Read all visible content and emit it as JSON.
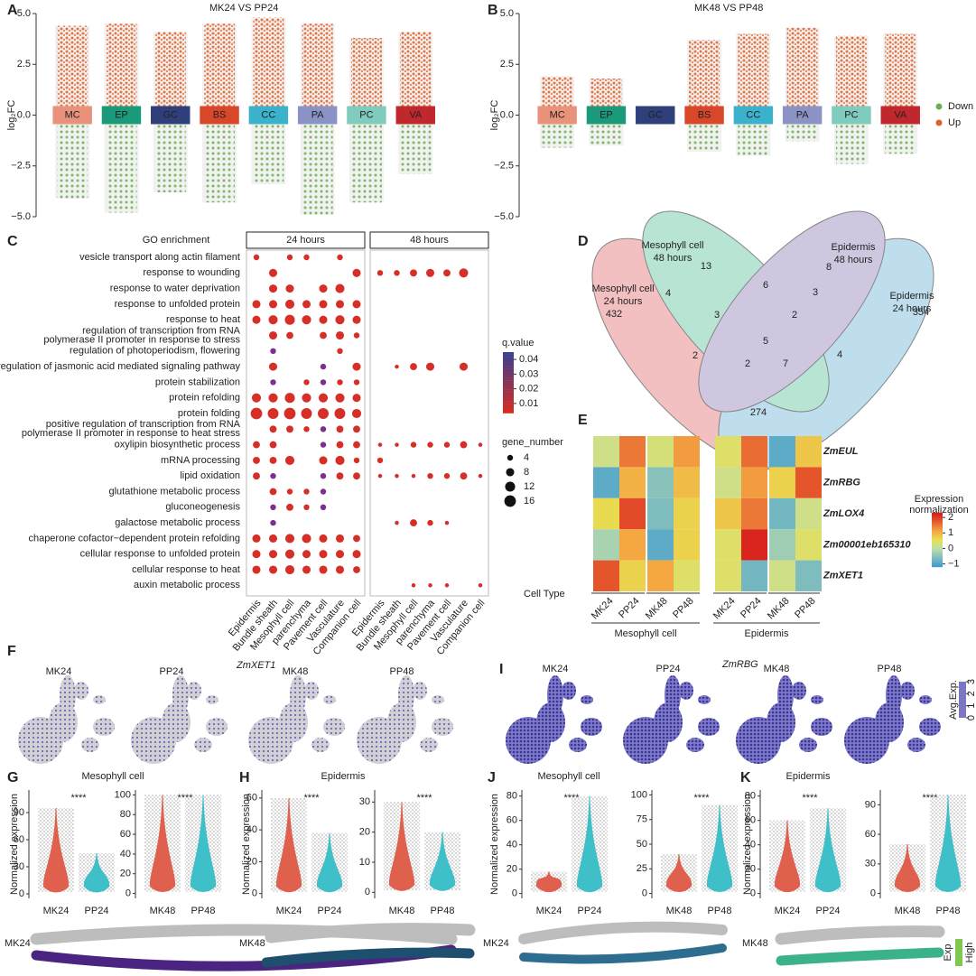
{
  "panel_a": {
    "label": "A",
    "title": "MK24 VS PP24",
    "ylabel": "log₂FC",
    "ylim": [
      -5,
      5
    ],
    "yticks": [
      {
        "value": 5,
        "label": "5.0"
      },
      2.5,
      {
        "value": 0,
        "label": "0.0"
      },
      {
        "value": -2.5,
        "label": "−2.5"
      },
      {
        "value": -5,
        "label": "−5.0"
      }
    ],
    "categories": [
      "MC",
      "EP",
      "GC",
      "BS",
      "CC",
      "PA",
      "PC",
      "VA"
    ],
    "colors": [
      "#e8927c",
      "#1a9a7a",
      "#2e3f7a",
      "#d9472b",
      "#3bb2cc",
      "#8a92c6",
      "#7fcbbd",
      "#c0282d"
    ],
    "up_max": [
      4.4,
      4.5,
      4.1,
      4.5,
      4.8,
      4.5,
      3.8,
      4.1
    ],
    "down_min": [
      -4.1,
      -4.8,
      -3.8,
      -4.3,
      -3.4,
      -4.9,
      -4.3,
      -2.9
    ]
  },
  "panel_b": {
    "label": "B",
    "title": "MK48 VS PP48",
    "ylabel": "log₂FC",
    "ylim": [
      -5,
      5
    ],
    "yticks": [
      {
        "value": 5,
        "label": "5.0"
      },
      2.5,
      {
        "value": 0,
        "label": "0.0"
      },
      {
        "value": -2.5,
        "label": "−2.5"
      },
      {
        "value": -5,
        "label": "−5.0"
      }
    ],
    "categories": [
      "MC",
      "EP",
      "GC",
      "BS",
      "CC",
      "PA",
      "PC",
      "VA"
    ],
    "colors": [
      "#e8927c",
      "#1a9a7a",
      "#2e3f7a",
      "#d9472b",
      "#3bb2cc",
      "#8a92c6",
      "#7fcbbd",
      "#c0282d"
    ],
    "up_max": [
      1.9,
      1.8,
      null,
      3.7,
      4.0,
      4.3,
      3.9,
      4.0
    ],
    "down_min": [
      -1.6,
      -1.5,
      null,
      -1.8,
      -2.0,
      -1.3,
      -2.4,
      -1.9
    ],
    "legend": [
      {
        "name": "Down",
        "color": "#6ab04c"
      },
      {
        "name": "Up",
        "color": "#e0602a"
      }
    ]
  },
  "panel_c": {
    "label": "C",
    "title": "GO enrichment",
    "facets": [
      "24 hours",
      "48 hours"
    ],
    "cell_types": [
      "Epidermis",
      "Bundle sheath",
      "Mesophyll cell",
      "parenchyma",
      "Pavement cell",
      "Vasculature",
      "Companion cell"
    ],
    "x_title": "Cell Type",
    "terms": [
      {
        "term": [
          "vesicle transport along actin filament"
        ],
        "s24": [
          4,
          null,
          4,
          4,
          null,
          4,
          null
        ],
        "s48": [
          null,
          null,
          null,
          null,
          null,
          null,
          null
        ]
      },
      {
        "term": [
          "response to wounding"
        ],
        "s24": [
          null,
          8,
          null,
          null,
          null,
          null,
          8
        ],
        "s48": [
          4,
          4,
          6,
          8,
          6,
          10,
          null
        ]
      },
      {
        "term": [
          "response to water deprivation"
        ],
        "s24": [
          null,
          8,
          8,
          null,
          8,
          10,
          null
        ],
        "s48": [
          null,
          null,
          null,
          null,
          null,
          null,
          null
        ]
      },
      {
        "term": [
          "response to unfolded protein"
        ],
        "s24": [
          8,
          8,
          10,
          8,
          8,
          8,
          8
        ],
        "s48": [
          null,
          null,
          null,
          null,
          null,
          null,
          null
        ]
      },
      {
        "term": [
          "response to heat"
        ],
        "s24": [
          8,
          10,
          12,
          10,
          8,
          10,
          8
        ],
        "s48": [
          null,
          null,
          null,
          null,
          null,
          null,
          null
        ]
      },
      {
        "term": [
          "regulation of transcription from RNA",
          "polymerase II promoter in response to stress"
        ],
        "s24": [
          null,
          8,
          6,
          null,
          6,
          8,
          4
        ],
        "s48": [
          null,
          null,
          null,
          null,
          null,
          null,
          null
        ]
      },
      {
        "term": [
          "regulation of photoperiodism, flowering"
        ],
        "s24": [
          null,
          4,
          null,
          null,
          null,
          4,
          null
        ],
        "s48": [
          null,
          null,
          null,
          null,
          null,
          null,
          null
        ]
      },
      {
        "term": [
          "regulation of jasmonic acid mediated signaling pathway"
        ],
        "s24": [
          null,
          8,
          null,
          null,
          4,
          null,
          8
        ],
        "s48": [
          null,
          2,
          6,
          8,
          null,
          8,
          null
        ]
      },
      {
        "term": [
          "protein stabilization"
        ],
        "s24": [
          null,
          4,
          null,
          4,
          4,
          4,
          4
        ],
        "s48": [
          null,
          null,
          null,
          null,
          null,
          null,
          null
        ]
      },
      {
        "term": [
          "protein refolding"
        ],
        "s24": [
          10,
          10,
          12,
          10,
          10,
          10,
          8
        ],
        "s48": [
          null,
          null,
          null,
          null,
          null,
          null,
          null
        ]
      },
      {
        "term": [
          "protein folding"
        ],
        "s24": [
          16,
          14,
          16,
          14,
          14,
          14,
          10
        ],
        "s48": [
          null,
          null,
          null,
          null,
          null,
          null,
          null
        ]
      },
      {
        "term": [
          "positive regulation of transcription from RNA",
          "polymerase II promoter in response to heat stress"
        ],
        "s24": [
          null,
          6,
          6,
          4,
          4,
          6,
          6
        ],
        "s48": [
          null,
          null,
          null,
          null,
          null,
          null,
          null
        ]
      },
      {
        "term": [
          "oxylipin biosynthetic process"
        ],
        "s24": [
          6,
          6,
          null,
          null,
          4,
          6,
          6
        ],
        "s48": [
          2,
          2,
          4,
          4,
          4,
          6,
          2
        ]
      },
      {
        "term": [
          "mRNA processing"
        ],
        "s24": [
          6,
          6,
          10,
          null,
          8,
          10,
          4
        ],
        "s48": [
          4,
          null,
          null,
          null,
          null,
          null,
          null
        ]
      },
      {
        "term": [
          "lipid oxidation"
        ],
        "s24": [
          6,
          4,
          null,
          null,
          4,
          6,
          6
        ],
        "s48": [
          2,
          2,
          2,
          4,
          4,
          6,
          2
        ]
      },
      {
        "term": [
          "glutathione metabolic process"
        ],
        "s24": [
          null,
          6,
          4,
          4,
          4,
          null,
          null
        ],
        "s48": [
          null,
          null,
          null,
          null,
          null,
          null,
          null
        ]
      },
      {
        "term": [
          "gluconeogenesis"
        ],
        "s24": [
          null,
          4,
          6,
          4,
          4,
          null,
          null
        ],
        "s48": [
          null,
          null,
          null,
          null,
          null,
          null,
          null
        ]
      },
      {
        "term": [
          "galactose metabolic process"
        ],
        "s24": [
          null,
          4,
          null,
          null,
          null,
          null,
          null
        ],
        "s48": [
          null,
          2,
          6,
          4,
          2,
          null,
          null
        ]
      },
      {
        "term": [
          "chaperone cofactor−dependent protein refolding"
        ],
        "s24": [
          8,
          8,
          10,
          10,
          8,
          8,
          6
        ],
        "s48": [
          null,
          null,
          null,
          null,
          null,
          null,
          null
        ]
      },
      {
        "term": [
          "cellular response to unfolded protein"
        ],
        "s24": [
          8,
          8,
          10,
          8,
          8,
          8,
          8
        ],
        "s48": [
          null,
          null,
          null,
          null,
          null,
          null,
          null
        ]
      },
      {
        "term": [
          "cellular response to heat"
        ],
        "s24": [
          8,
          8,
          10,
          8,
          8,
          8,
          6
        ],
        "s48": [
          null,
          null,
          null,
          null,
          null,
          null,
          null
        ]
      },
      {
        "term": [
          "auxin metabolic process"
        ],
        "s24": [
          null,
          null,
          null,
          null,
          null,
          null,
          null
        ],
        "s48": [
          null,
          null,
          2,
          2,
          2,
          null,
          2
        ]
      }
    ],
    "q_title": "q.value",
    "q_lim": [
      0.005,
      0.045
    ],
    "q_ticks": [
      0.04,
      0.03,
      0.02,
      0.01
    ],
    "size_title": "gene_number",
    "size_ticks": [
      4,
      8,
      12,
      16
    ]
  },
  "panel_d": {
    "label": "D",
    "sets": [
      [
        "Mesophyll cell",
        "48 hours"
      ],
      [
        "Epidermis",
        "48 hours"
      ],
      [
        "Mesophyll cell",
        "24 hours"
      ],
      [
        "Epidermis",
        "24 hours"
      ]
    ],
    "counts": [
      13,
      8,
      432,
      354,
      4,
      6,
      3,
      3,
      2,
      5,
      2,
      2,
      7,
      4,
      274
    ]
  },
  "panel_e": {
    "label": "E",
    "genes": [
      "ZmEUL",
      "ZmRBG",
      "ZmLOX4",
      "Zm00001eb165310",
      "ZmXET1"
    ],
    "samples": [
      "MK24",
      "PP24",
      "MK48",
      "PP48",
      "MK24",
      "PP24",
      "MK48",
      "PP48"
    ],
    "groups": [
      "Mesophyll cell",
      "Epidermis"
    ],
    "values": [
      [
        0.2,
        1.5,
        0.3,
        1.2,
        0.4,
        1.6,
        -0.9,
        0.8
      ],
      [
        -0.9,
        1.0,
        -0.5,
        0.9,
        0.2,
        1.2,
        0.7,
        1.8
      ],
      [
        0.6,
        1.9,
        -0.6,
        0.7,
        0.8,
        1.5,
        -0.7,
        0.2
      ],
      [
        -0.2,
        1.1,
        -0.9,
        0.7,
        0.4,
        2.2,
        -0.3,
        0.4
      ],
      [
        1.8,
        0.7,
        1.1,
        0.4,
        0.4,
        -0.7,
        0.2,
        -0.6
      ]
    ],
    "legend_title": [
      "Expression",
      "normalization"
    ],
    "clim": [
      -1.2,
      2.3
    ],
    "cticks": [
      2,
      1,
      0,
      {
        "value": -1,
        "label": "−1"
      }
    ]
  },
  "panel_f": {
    "label": "F",
    "gene": "ZmXET1",
    "samples": [
      "MK24",
      "PP24",
      "MK48",
      "PP48"
    ]
  },
  "panel_i": {
    "label": "I",
    "gene": "ZmRBG",
    "samples": [
      "MK24",
      "PP24",
      "MK48",
      "PP48"
    ],
    "legend_title": "Avg.Exp.",
    "legend_ticks": [
      0,
      1,
      2,
      3
    ]
  },
  "panel_g": {
    "label": "G",
    "title": "Mesophyll cell",
    "ylabel": "Normalized expression",
    "image_label": "MK24",
    "plots": [
      {
        "categories": [
          "MK24",
          "PP24"
        ],
        "colors": [
          "#e0604e",
          "#3fbfc8"
        ],
        "max": [
          95,
          45
        ],
        "sig": "****",
        "ylim": [
          -5,
          115
        ],
        "yticks": [
          0,
          30,
          60,
          90
        ]
      },
      {
        "categories": [
          "MK48",
          "PP48"
        ],
        "colors": [
          "#e0604e",
          "#3fbfc8"
        ],
        "max": [
          100,
          100
        ],
        "sig": "****",
        "ylim": [
          -5,
          105
        ],
        "yticks": [
          0,
          20,
          40,
          60,
          80,
          100
        ]
      }
    ]
  },
  "panel_h": {
    "label": "H",
    "title": "Epidermis",
    "ylabel": "Normalized expression",
    "image_label": "MK48",
    "plots": [
      {
        "categories": [
          "MK24",
          "PP24"
        ],
        "colors": [
          "#e0604e",
          "#3fbfc8"
        ],
        "max": [
          60,
          38
        ],
        "sig": "****",
        "ylim": [
          -3,
          65
        ],
        "yticks": [
          0,
          20,
          40,
          60
        ]
      },
      {
        "categories": [
          "MK48",
          "PP48"
        ],
        "colors": [
          "#e0604e",
          "#3fbfc8"
        ],
        "max": [
          30,
          20
        ],
        "sig": "****",
        "ylim": [
          -2,
          34
        ],
        "yticks": [
          0,
          10,
          20,
          30
        ]
      }
    ]
  },
  "panel_j": {
    "label": "J",
    "title": "Mesophyll cell",
    "ylabel": "Normalized expression",
    "image_label": "MK24",
    "plots": [
      {
        "categories": [
          "MK24",
          "PP24"
        ],
        "colors": [
          "#e0604e",
          "#3fbfc8"
        ],
        "max": [
          18,
          80
        ],
        "sig": "****",
        "ylim": [
          -4,
          85
        ],
        "yticks": [
          0,
          20,
          40,
          60,
          80
        ]
      },
      {
        "categories": [
          "MK48",
          "PP48"
        ],
        "colors": [
          "#e0604e",
          "#3fbfc8"
        ],
        "max": [
          40,
          90
        ],
        "sig": "****",
        "ylim": [
          -5,
          105
        ],
        "yticks": [
          0,
          25,
          50,
          75,
          100
        ]
      }
    ]
  },
  "panel_k": {
    "label": "K",
    "title": "Epidermis",
    "ylabel": "Normalized expression",
    "image_label": "MK48",
    "exp_legend": [
      "Exp",
      "High"
    ],
    "plots": [
      {
        "categories": [
          "MK24",
          "PP24"
        ],
        "colors": [
          "#e0604e",
          "#3fbfc8"
        ],
        "max": [
          60,
          70
        ],
        "sig": "****",
        "ylim": [
          -4,
          85
        ],
        "yticks": [
          0,
          20,
          40,
          60,
          80
        ]
      },
      {
        "categories": [
          "MK48",
          "PP48"
        ],
        "colors": [
          "#e0604e",
          "#3fbfc8"
        ],
        "max": [
          50,
          100
        ],
        "sig": "****",
        "ylim": [
          -5,
          105
        ],
        "yticks": [
          0,
          30,
          60,
          90
        ]
      }
    ]
  }
}
